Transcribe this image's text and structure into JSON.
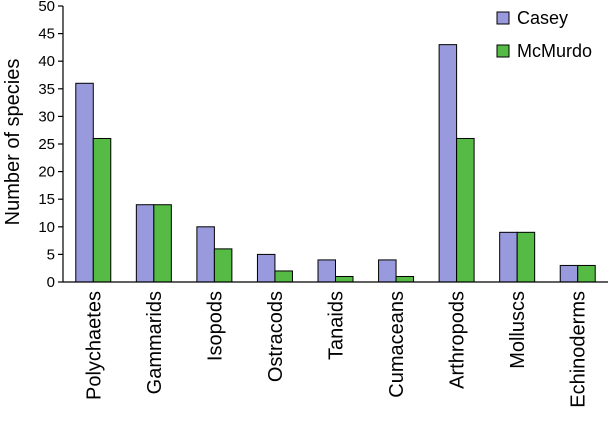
{
  "chart_data": {
    "type": "bar",
    "title": "",
    "xlabel": "",
    "ylabel": "Number of species",
    "ylim": [
      0,
      50
    ],
    "yticks": [
      0,
      5,
      10,
      15,
      20,
      25,
      30,
      35,
      40,
      45,
      50
    ],
    "grid": false,
    "legend_position": "top-right",
    "categories": [
      "Polychaetes",
      "Gammarids",
      "Isopods",
      "Ostracods",
      "Tanaids",
      "Cumaceans",
      "Arthropods",
      "Molluscs",
      "Echinoderms"
    ],
    "series": [
      {
        "name": "Casey",
        "color": "#9999dd",
        "values": [
          36,
          14,
          10,
          5,
          4,
          4,
          43,
          9,
          3
        ]
      },
      {
        "name": "McMurdo",
        "color": "#55bb44",
        "values": [
          26,
          14,
          6,
          2,
          1,
          1,
          26,
          9,
          3
        ]
      }
    ]
  }
}
